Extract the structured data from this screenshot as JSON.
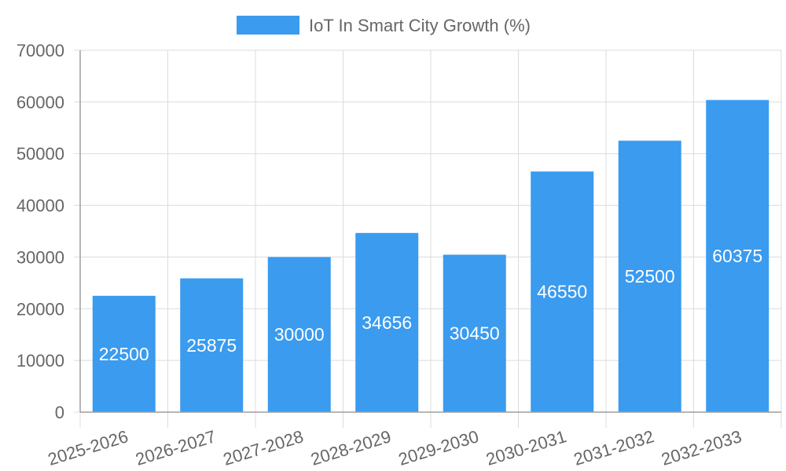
{
  "chart_data": {
    "type": "bar",
    "categories": [
      "2025-2026",
      "2026-2027",
      "2027-2028",
      "2028-2029",
      "2029-2030",
      "2030-2031",
      "2031-2032",
      "2032-2033"
    ],
    "series": [
      {
        "name": "IoT In Smart City Growth (%)",
        "values": [
          22500,
          25875,
          30000,
          34656,
          30450,
          46550,
          52500,
          60375
        ],
        "color": "#3a9bef"
      }
    ],
    "ylim": [
      0,
      70000
    ],
    "yticks": [
      0,
      10000,
      20000,
      30000,
      40000,
      50000,
      60000,
      70000
    ],
    "grid": true,
    "legend": "top-center",
    "data_labels": true
  }
}
